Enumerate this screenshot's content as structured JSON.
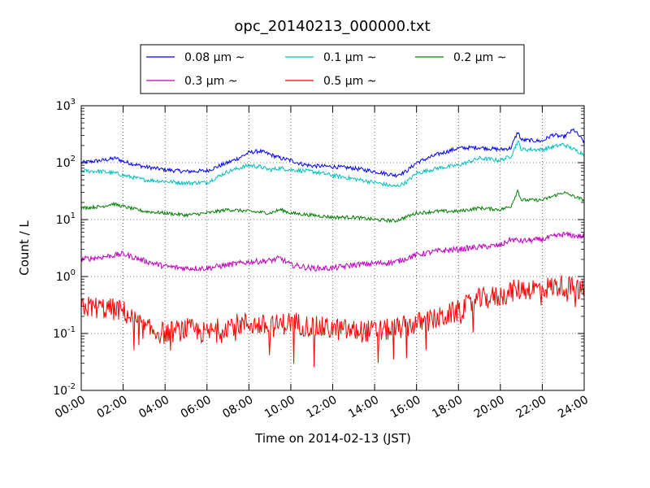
{
  "chart_data": {
    "type": "line",
    "title": "opc_20140213_000000.txt",
    "xlabel": "Time on 2014-02-13 (JST)",
    "ylabel": "Count / L",
    "yscale": "log",
    "ylim": [
      0.01,
      1000
    ],
    "y_ticks": [
      {
        "value": 0.01,
        "base": "10",
        "exp": "-2"
      },
      {
        "value": 0.1,
        "base": "10",
        "exp": "-1"
      },
      {
        "value": 1,
        "base": "10",
        "exp": "0"
      },
      {
        "value": 10,
        "base": "10",
        "exp": "1"
      },
      {
        "value": 100,
        "base": "10",
        "exp": "2"
      },
      {
        "value": 1000,
        "base": "10",
        "exp": "3"
      }
    ],
    "xlim": [
      "00:00",
      "24:00"
    ],
    "x_ticks": [
      "00:00",
      "02:00",
      "04:00",
      "06:00",
      "08:00",
      "10:00",
      "12:00",
      "14:00",
      "16:00",
      "18:00",
      "20:00",
      "22:00",
      "24:00"
    ],
    "grid": true,
    "legend_position": "top-center",
    "series": [
      {
        "name": "0.08 μm ~",
        "color": "#0000ff",
        "noise": 0.035,
        "x": [
          "00:00",
          "01:00",
          "01:40",
          "02:00",
          "03:00",
          "04:00",
          "05:00",
          "06:00",
          "06:30",
          "07:00",
          "07:30",
          "08:00",
          "08:30",
          "09:00",
          "09:30",
          "10:00",
          "10:30",
          "11:00",
          "12:00",
          "13:00",
          "14:00",
          "15:00",
          "15:30",
          "16:00",
          "17:00",
          "18:00",
          "19:00",
          "20:00",
          "20:30",
          "20:50",
          "21:00",
          "22:00",
          "22:30",
          "23:00",
          "23:30",
          "24:00"
        ],
        "values": [
          100,
          110,
          120,
          105,
          85,
          75,
          70,
          72,
          85,
          100,
          120,
          150,
          160,
          140,
          120,
          110,
          95,
          88,
          85,
          80,
          70,
          60,
          70,
          100,
          140,
          180,
          185,
          170,
          180,
          350,
          250,
          240,
          310,
          280,
          380,
          230
        ]
      },
      {
        "name": "0.1 μm ~",
        "color": "#00bfbf",
        "noise": 0.035,
        "x": [
          "00:00",
          "01:00",
          "01:40",
          "02:00",
          "03:00",
          "04:00",
          "05:00",
          "06:00",
          "07:00",
          "08:00",
          "08:30",
          "09:00",
          "09:30",
          "10:00",
          "11:00",
          "12:00",
          "13:00",
          "14:00",
          "15:00",
          "15:30",
          "16:00",
          "17:00",
          "18:00",
          "19:00",
          "20:00",
          "20:30",
          "20:50",
          "21:00",
          "22:00",
          "23:00",
          "24:00"
        ],
        "values": [
          72,
          70,
          65,
          60,
          50,
          47,
          44,
          45,
          70,
          90,
          85,
          75,
          80,
          75,
          70,
          60,
          52,
          45,
          38,
          45,
          65,
          80,
          90,
          120,
          110,
          130,
          240,
          170,
          170,
          210,
          140
        ]
      },
      {
        "name": "0.2 μm ~",
        "color": "#008000",
        "noise": 0.03,
        "x": [
          "00:00",
          "01:00",
          "01:30",
          "02:00",
          "03:00",
          "04:00",
          "05:00",
          "06:00",
          "07:00",
          "08:00",
          "09:00",
          "09:30",
          "10:00",
          "11:00",
          "12:00",
          "13:00",
          "14:00",
          "15:00",
          "16:00",
          "17:00",
          "18:00",
          "19:00",
          "20:00",
          "20:30",
          "20:50",
          "21:00",
          "22:00",
          "23:00",
          "24:00"
        ],
        "values": [
          16,
          17,
          19,
          17,
          14,
          13,
          12,
          13,
          15,
          14,
          13,
          15,
          13,
          12,
          11,
          11,
          10,
          9.5,
          13,
          14,
          14,
          16,
          15,
          17,
          33,
          22,
          22,
          30,
          22
        ]
      },
      {
        "name": "0.3 μm ~",
        "color": "#bf00bf",
        "noise": 0.05,
        "x": [
          "00:00",
          "01:00",
          "02:00",
          "03:00",
          "04:00",
          "05:00",
          "06:00",
          "07:00",
          "08:00",
          "09:00",
          "09:30",
          "10:00",
          "11:00",
          "12:00",
          "13:00",
          "14:00",
          "15:00",
          "16:00",
          "17:00",
          "18:00",
          "19:00",
          "20:00",
          "20:30",
          "21:00",
          "22:00",
          "23:00",
          "24:00"
        ],
        "values": [
          2.0,
          2.2,
          2.5,
          1.9,
          1.5,
          1.4,
          1.4,
          1.6,
          1.8,
          1.9,
          2.1,
          1.6,
          1.4,
          1.4,
          1.6,
          1.7,
          1.8,
          2.4,
          2.8,
          3.0,
          3.3,
          3.5,
          4.5,
          4.2,
          4.5,
          5.5,
          5.0
        ]
      },
      {
        "name": "0.5 μm ~",
        "color": "#ff0000",
        "noise": 0.2,
        "x": [
          "00:00",
          "01:00",
          "02:00",
          "03:00",
          "04:00",
          "05:00",
          "06:00",
          "07:00",
          "08:00",
          "09:00",
          "10:00",
          "11:00",
          "12:00",
          "13:00",
          "14:00",
          "15:00",
          "16:00",
          "17:00",
          "18:00",
          "19:00",
          "20:00",
          "20:30",
          "21:00",
          "22:00",
          "23:00",
          "24:00"
        ],
        "values": [
          0.3,
          0.28,
          0.25,
          0.12,
          0.1,
          0.12,
          0.1,
          0.14,
          0.15,
          0.13,
          0.16,
          0.13,
          0.12,
          0.11,
          0.11,
          0.12,
          0.15,
          0.18,
          0.25,
          0.4,
          0.45,
          0.55,
          0.6,
          0.62,
          0.7,
          0.55
        ]
      }
    ]
  }
}
